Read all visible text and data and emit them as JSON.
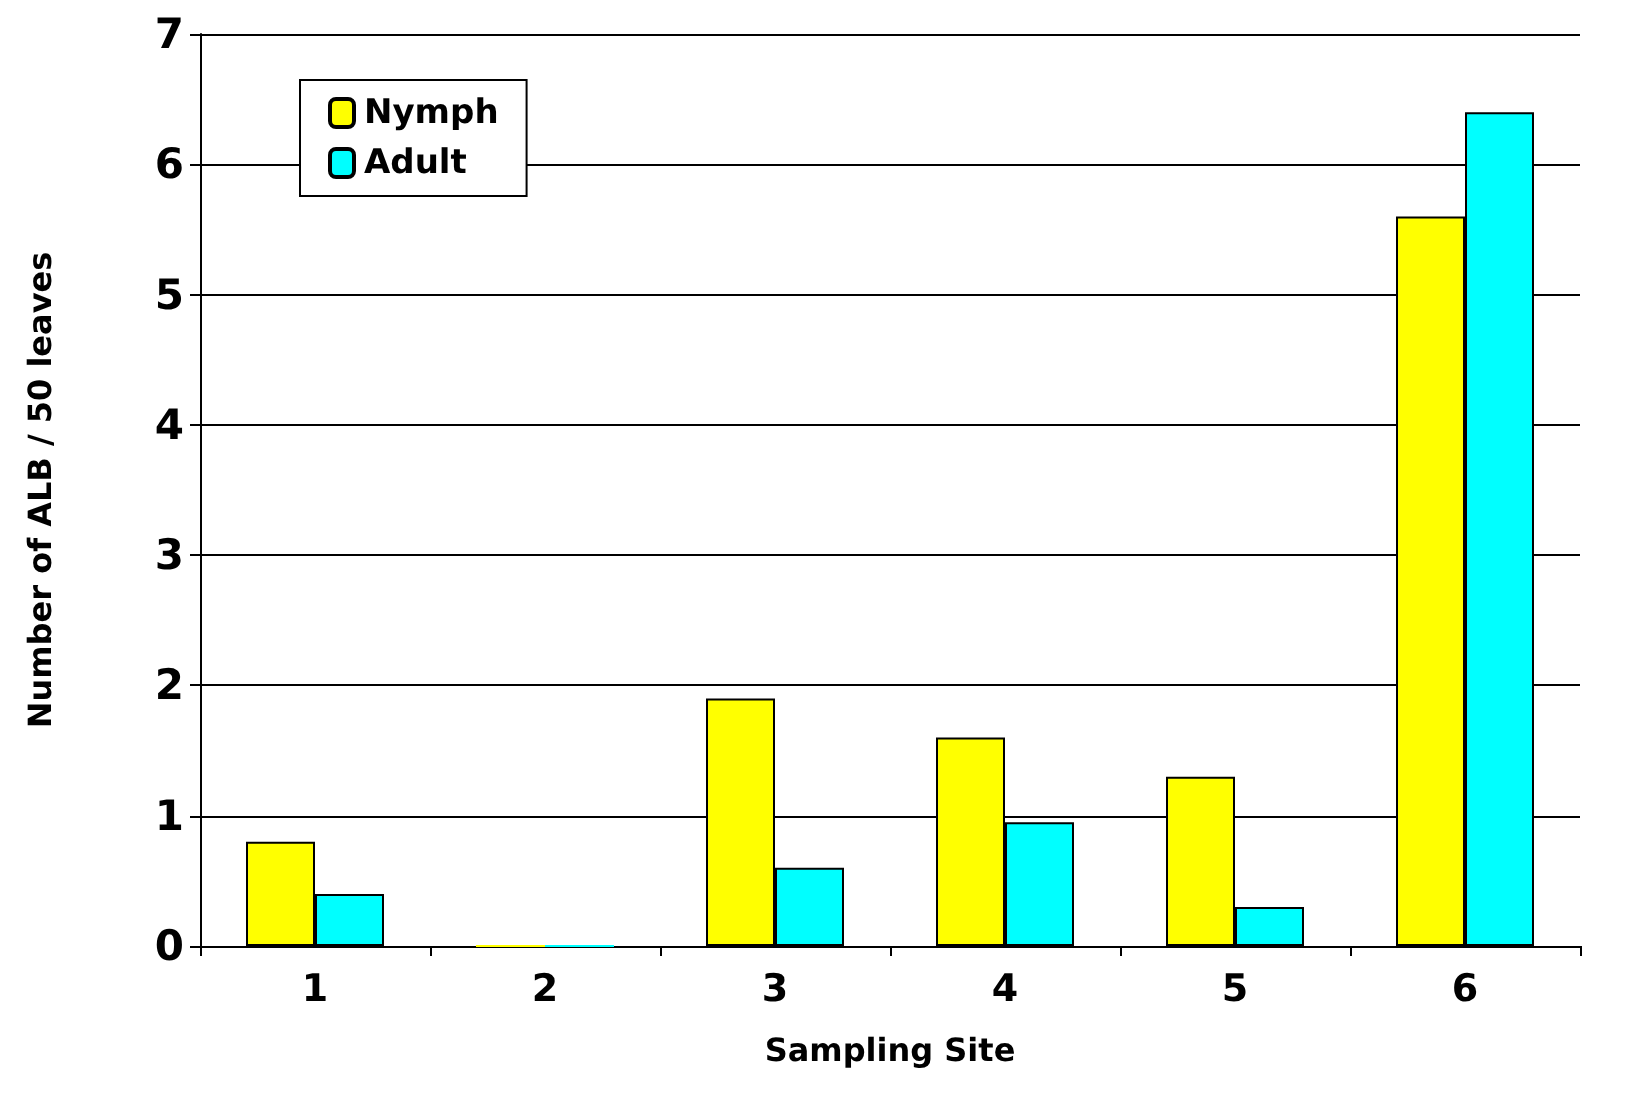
{
  "chart_data": {
    "type": "bar",
    "xlabel": "Sampling Site",
    "ylabel": "Number of ALB / 50 leaves",
    "categories": [
      "1",
      "2",
      "3",
      "4",
      "5",
      "6"
    ],
    "series": [
      {
        "name": "Nymph",
        "color": "#ffff00",
        "values": [
          0.8,
          0,
          1.9,
          1.6,
          1.3,
          5.6
        ]
      },
      {
        "name": "Adult",
        "color": "#00ffff",
        "values": [
          0.4,
          0,
          0.6,
          0.95,
          0.3,
          6.4
        ]
      }
    ],
    "ylim": [
      0,
      7
    ],
    "yticks": [
      0,
      1,
      2,
      3,
      4,
      5,
      6,
      7
    ],
    "grid": "y",
    "legend": "top left"
  }
}
